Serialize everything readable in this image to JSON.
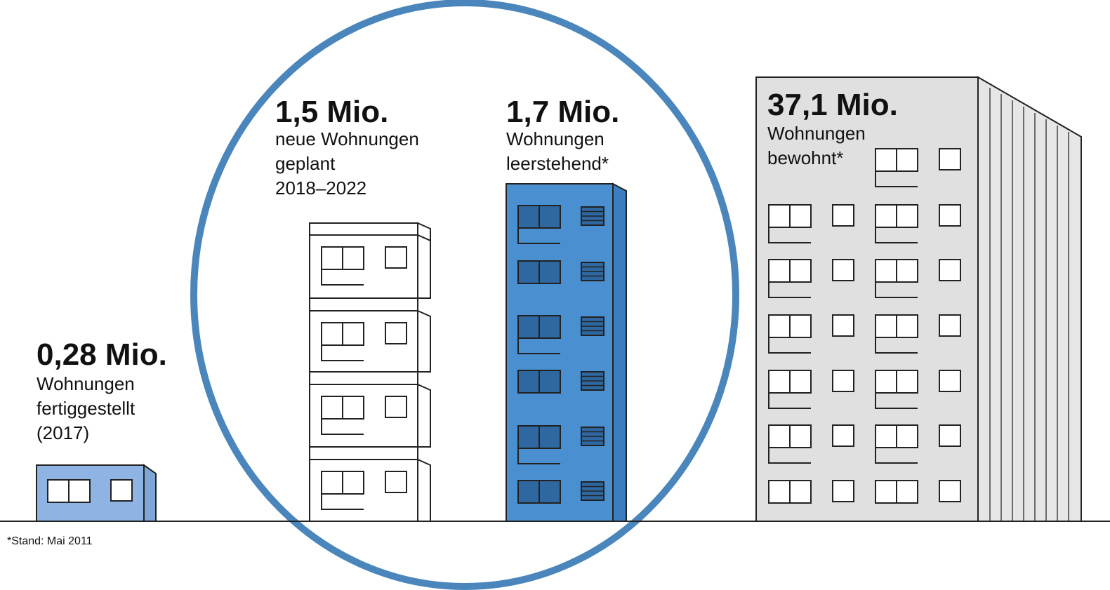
{
  "items": [
    {
      "value": "0,28 Mio.",
      "lines": [
        "Wohnungen",
        "fertiggestellt",
        "(2017)"
      ]
    },
    {
      "value": "1,5 Mio.",
      "lines": [
        "neue Wohnungen",
        "geplant",
        "2018–2022"
      ]
    },
    {
      "value": "1,7 Mio.",
      "lines": [
        "Wohnungen",
        "leerstehend*"
      ]
    },
    {
      "value": "37,1 Mio.",
      "lines": [
        "Wohnungen",
        "bewohnt*"
      ]
    }
  ],
  "footnote": "*Stand: Mai 2011"
}
